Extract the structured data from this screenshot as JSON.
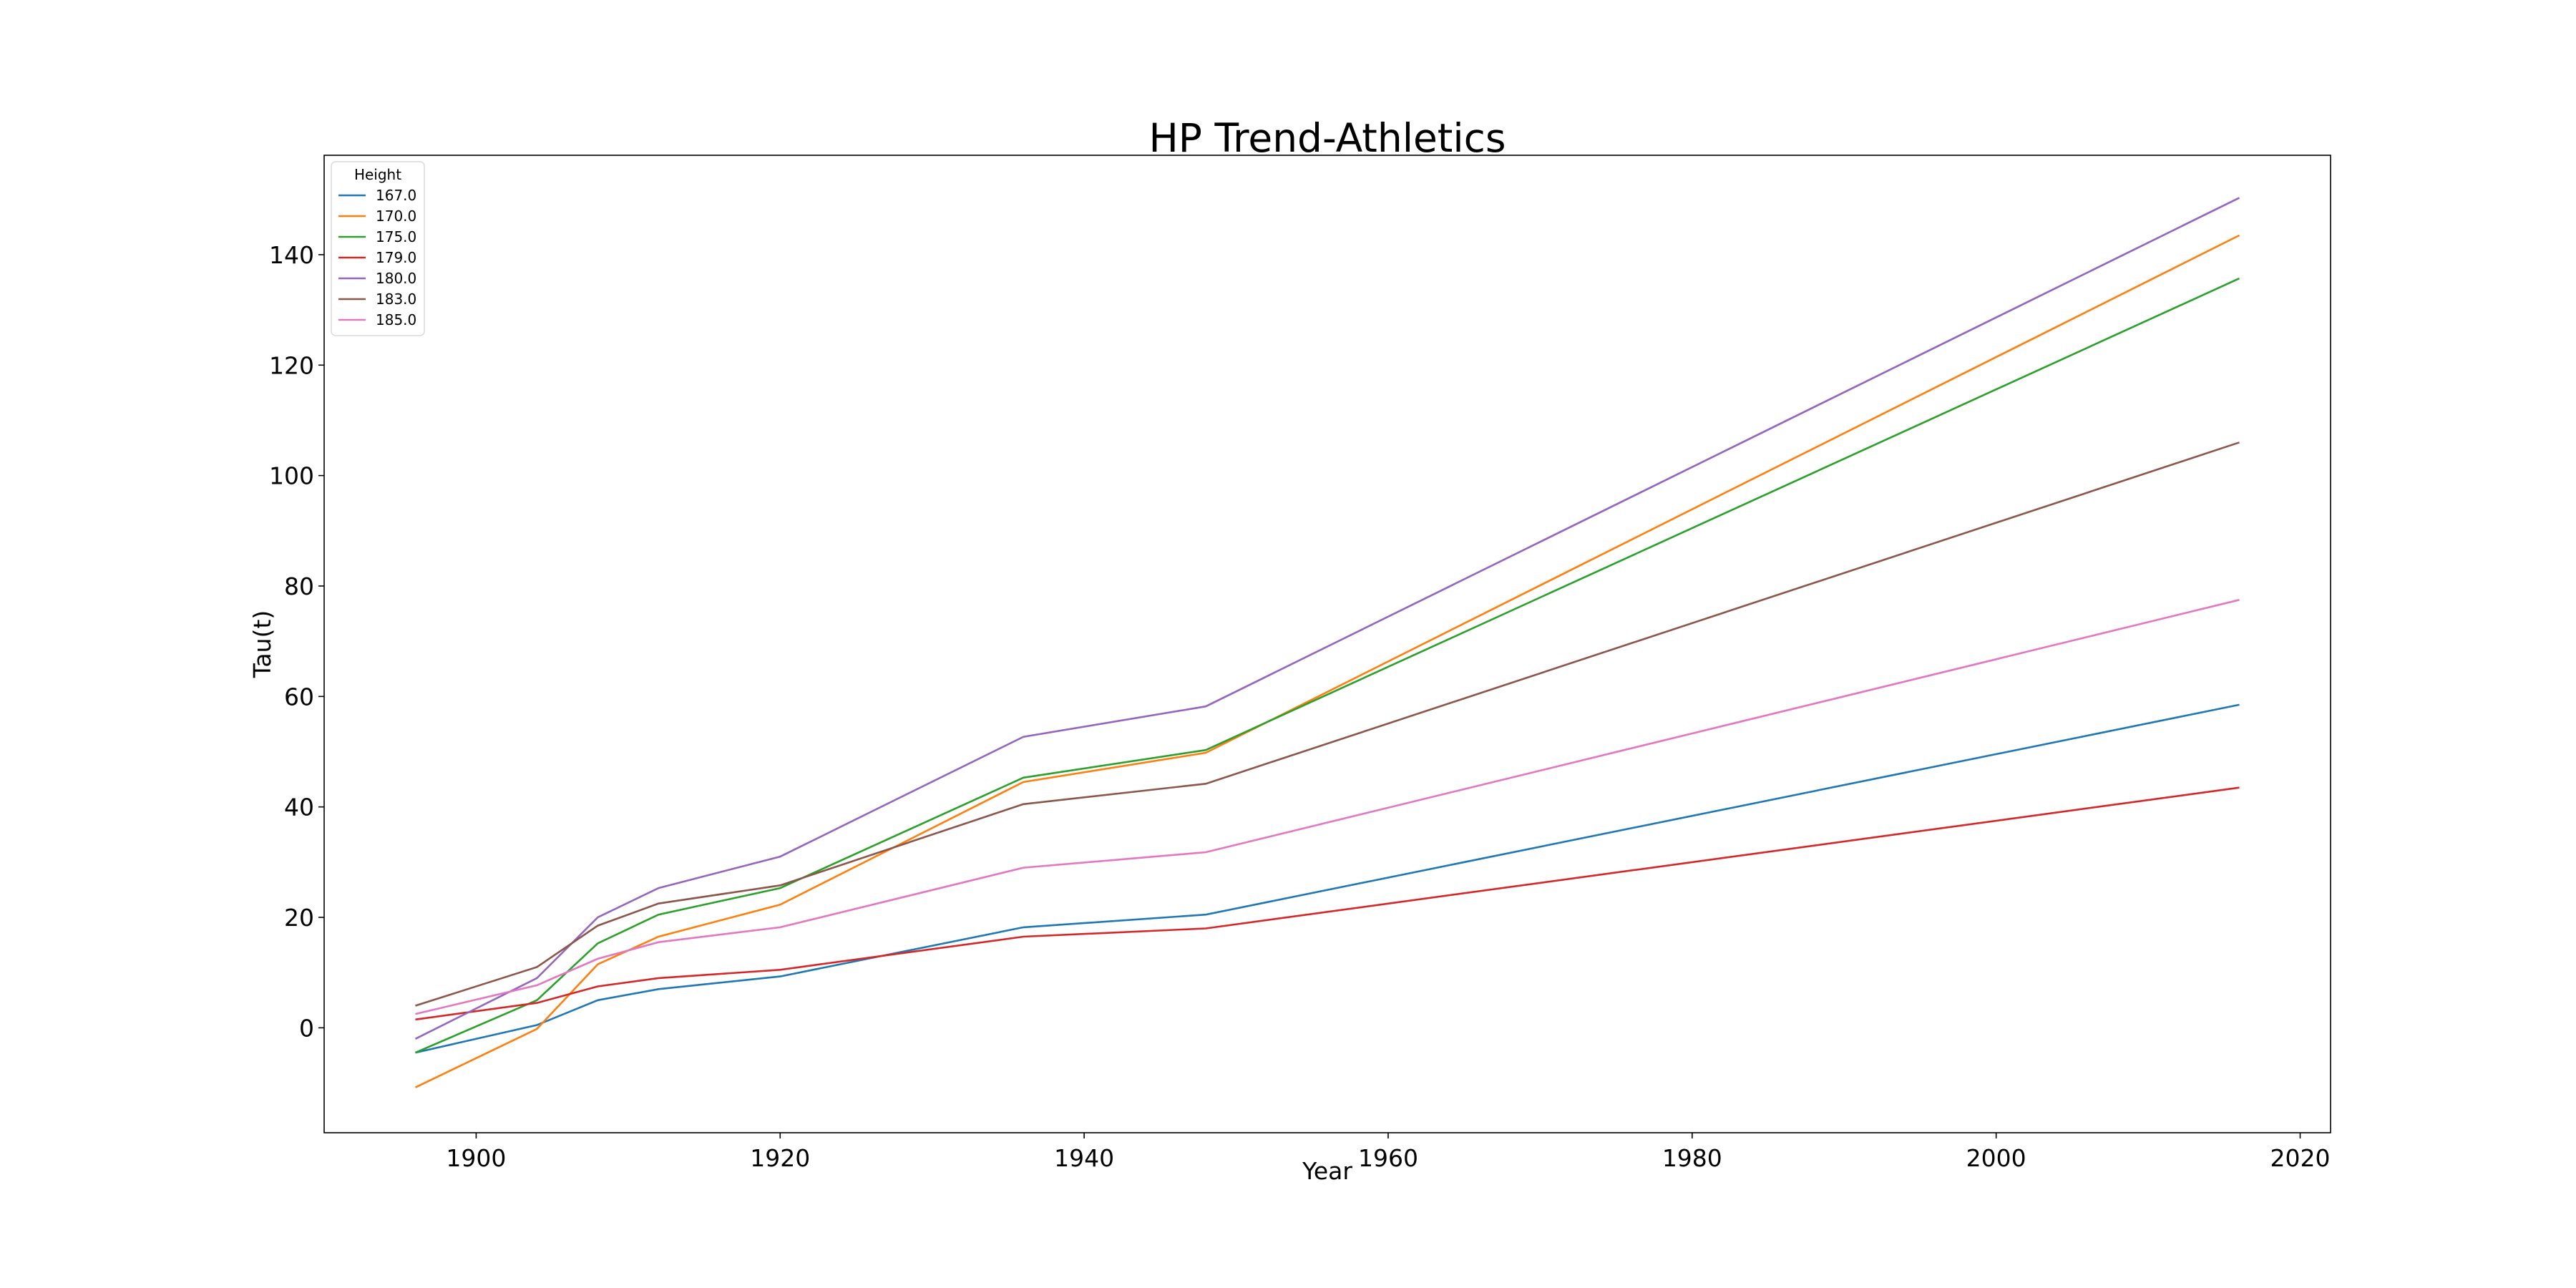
{
  "chart_data": {
    "type": "line",
    "title": "HP Trend-Athletics",
    "xlabel": "Year",
    "ylabel": "Tau(t)",
    "xlim": [
      1890,
      2022
    ],
    "ylim": [
      -19,
      158
    ],
    "x_ticks": [
      1900,
      1920,
      1940,
      1960,
      1980,
      2000,
      2020
    ],
    "y_ticks": [
      0,
      20,
      40,
      60,
      80,
      100,
      120,
      140
    ],
    "x": [
      1896,
      1904,
      1908,
      1912,
      1920,
      1936,
      1948,
      2016
    ],
    "grid": false,
    "legend": {
      "title": "Height",
      "placement": "top-left"
    },
    "series": [
      {
        "name": "167.0",
        "color": "#1f77b4",
        "values": [
          -4.5,
          0.5,
          5,
          7,
          9.3,
          18.2,
          20.5,
          58.5
        ]
      },
      {
        "name": "170.0",
        "color": "#ff7f0e",
        "values": [
          -10.8,
          -0.2,
          11.5,
          16.5,
          22.3,
          44.5,
          49.8,
          143.5
        ]
      },
      {
        "name": "175.0",
        "color": "#2ca02c",
        "values": [
          -4.5,
          5,
          15.3,
          20.5,
          25.3,
          45.3,
          50.3,
          135.7
        ]
      },
      {
        "name": "179.0",
        "color": "#d62728",
        "values": [
          1.5,
          4.5,
          7.5,
          9,
          10.5,
          16.5,
          18,
          43.5
        ]
      },
      {
        "name": "180.0",
        "color": "#9467bd",
        "values": [
          -2,
          9,
          20,
          25.3,
          31,
          52.7,
          58.2,
          150.3
        ]
      },
      {
        "name": "183.0",
        "color": "#8c564b",
        "values": [
          4,
          11,
          18.5,
          22.5,
          25.8,
          40.5,
          44.2,
          106
        ]
      },
      {
        "name": "185.0",
        "color": "#e377c2",
        "values": [
          2.5,
          7.7,
          12.5,
          15.5,
          18.2,
          29,
          31.8,
          77.5
        ]
      }
    ]
  }
}
